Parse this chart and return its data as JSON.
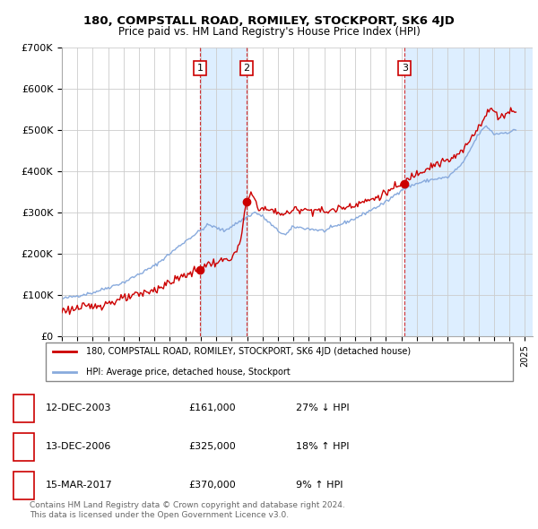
{
  "title": "180, COMPSTALL ROAD, ROMILEY, STOCKPORT, SK6 4JD",
  "subtitle": "Price paid vs. HM Land Registry's House Price Index (HPI)",
  "hpi_label": "HPI: Average price, detached house, Stockport",
  "property_label": "180, COMPSTALL ROAD, ROMILEY, STOCKPORT, SK6 4JD (detached house)",
  "ylim": [
    0,
    700000
  ],
  "yticks": [
    0,
    100000,
    200000,
    300000,
    400000,
    500000,
    600000,
    700000
  ],
  "ytick_labels": [
    "£0",
    "£100K",
    "£200K",
    "£300K",
    "£400K",
    "£500K",
    "£600K",
    "£700K"
  ],
  "xlim_start": 1995.0,
  "xlim_end": 2025.5,
  "property_color": "#cc0000",
  "hpi_color": "#88aadd",
  "vline_color": "#cc0000",
  "shade_color": "#ddeeff",
  "grid_color": "#cccccc",
  "background_color": "#ffffff",
  "sales": [
    {
      "date": 2003.96,
      "price": 161000,
      "label": "1"
    },
    {
      "date": 2006.96,
      "price": 325000,
      "label": "2"
    },
    {
      "date": 2017.21,
      "price": 370000,
      "label": "3"
    }
  ],
  "table_entries": [
    {
      "num": "1",
      "date": "12-DEC-2003",
      "price": "£161,000",
      "hpi": "27% ↓ HPI"
    },
    {
      "num": "2",
      "date": "13-DEC-2006",
      "price": "£325,000",
      "hpi": "18% ↑ HPI"
    },
    {
      "num": "3",
      "date": "15-MAR-2017",
      "price": "£370,000",
      "hpi": "9% ↑ HPI"
    }
  ],
  "footer": "Contains HM Land Registry data © Crown copyright and database right 2024.\nThis data is licensed under the Open Government Licence v3.0."
}
